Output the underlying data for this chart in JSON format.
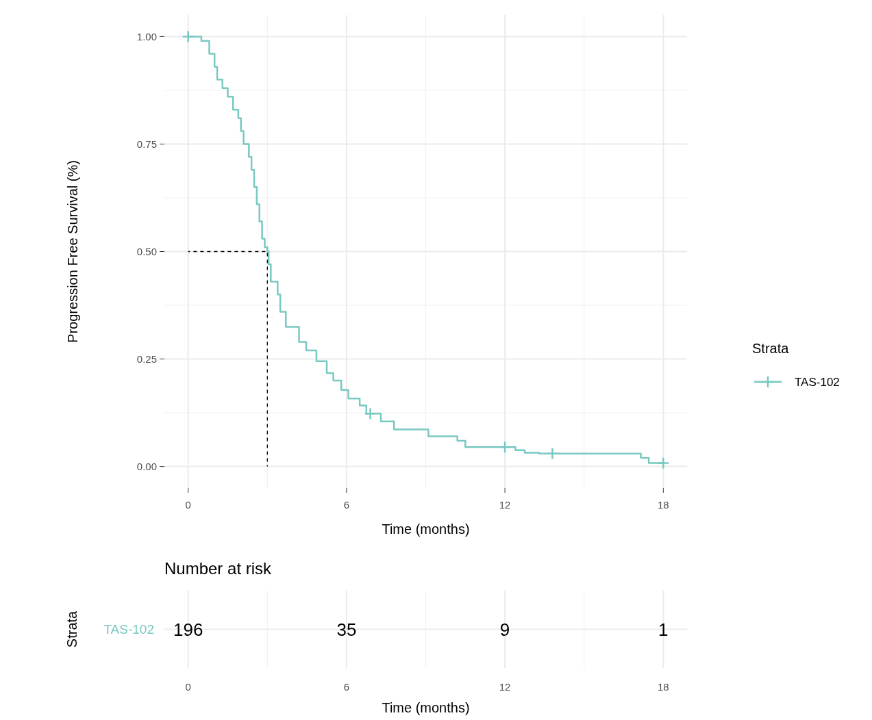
{
  "chart_data": [
    {
      "type": "step",
      "xlabel": "Time (months)",
      "ylabel": "Progression Free Survival (%)",
      "legend_title": "Strata",
      "xlim": [
        -0.9,
        18.9
      ],
      "ylim": [
        -0.05,
        1.05
      ],
      "xticks": [
        0,
        6,
        12,
        18
      ],
      "yticks": [
        {
          "value": 0,
          "label": "0.00"
        },
        {
          "value": 0.25,
          "label": "0.25"
        },
        {
          "value": 0.5,
          "label": "0.50"
        },
        {
          "value": 0.75,
          "label": "0.75"
        },
        {
          "value": 1,
          "label": "1.00"
        }
      ],
      "grid": true,
      "legend": "right",
      "series": [
        {
          "name": "TAS-102",
          "type": "step",
          "color": "#78c9c1",
          "marker": "none",
          "x": [
            0,
            0.5,
            0.8,
            1.0,
            1.1,
            1.3,
            1.5,
            1.7,
            1.9,
            2.0,
            2.1,
            2.3,
            2.4,
            2.5,
            2.6,
            2.7,
            2.8,
            2.9,
            3.0,
            3.05,
            3.13,
            3.39,
            3.49,
            3.7,
            4.2,
            4.47,
            4.86,
            5.25,
            5.5,
            5.8,
            6.07,
            6.5,
            6.75,
            7.3,
            7.8,
            9.1,
            10.2,
            10.5,
            12.4,
            12.75,
            13.3,
            17.15,
            17.45,
            18
          ],
          "values": [
            1,
            0.99,
            0.96,
            0.93,
            0.9,
            0.88,
            0.86,
            0.83,
            0.81,
            0.78,
            0.75,
            0.72,
            0.69,
            0.65,
            0.61,
            0.57,
            0.53,
            0.51,
            0.5,
            0.47,
            0.43,
            0.4,
            0.36,
            0.325,
            0.29,
            0.27,
            0.245,
            0.217,
            0.2,
            0.178,
            0.158,
            0.142,
            0.123,
            0.105,
            0.086,
            0.07,
            0.06,
            0.045,
            0.038,
            0.032,
            0.03,
            0.02,
            0.008,
            0.008
          ]
        },
        {
          "type": "scatter",
          "color": "#78c9c1",
          "marker": "cross",
          "x": [
            0,
            6.9,
            12.0,
            13.8,
            18
          ],
          "values": [
            1,
            0.123,
            0.045,
            0.03,
            0.008
          ]
        },
        {
          "type": "line",
          "color": "#000000",
          "line_style": "dashed",
          "marker": "none",
          "x": [
            0,
            3,
            3
          ],
          "values": [
            0.5,
            0.5,
            0
          ]
        }
      ]
    },
    {
      "type": "heatmap",
      "title": "Number at risk",
      "xlabel": "Time (months)",
      "ylabel": "Strata",
      "categories": [
        "0",
        "6",
        "12",
        "18"
      ],
      "y_categories": [
        "TAS-102"
      ],
      "colors": [
        "#78c9c1"
      ],
      "grid": true,
      "data_labels": true,
      "cells": [
        [
          196,
          35,
          9,
          1
        ]
      ]
    }
  ]
}
